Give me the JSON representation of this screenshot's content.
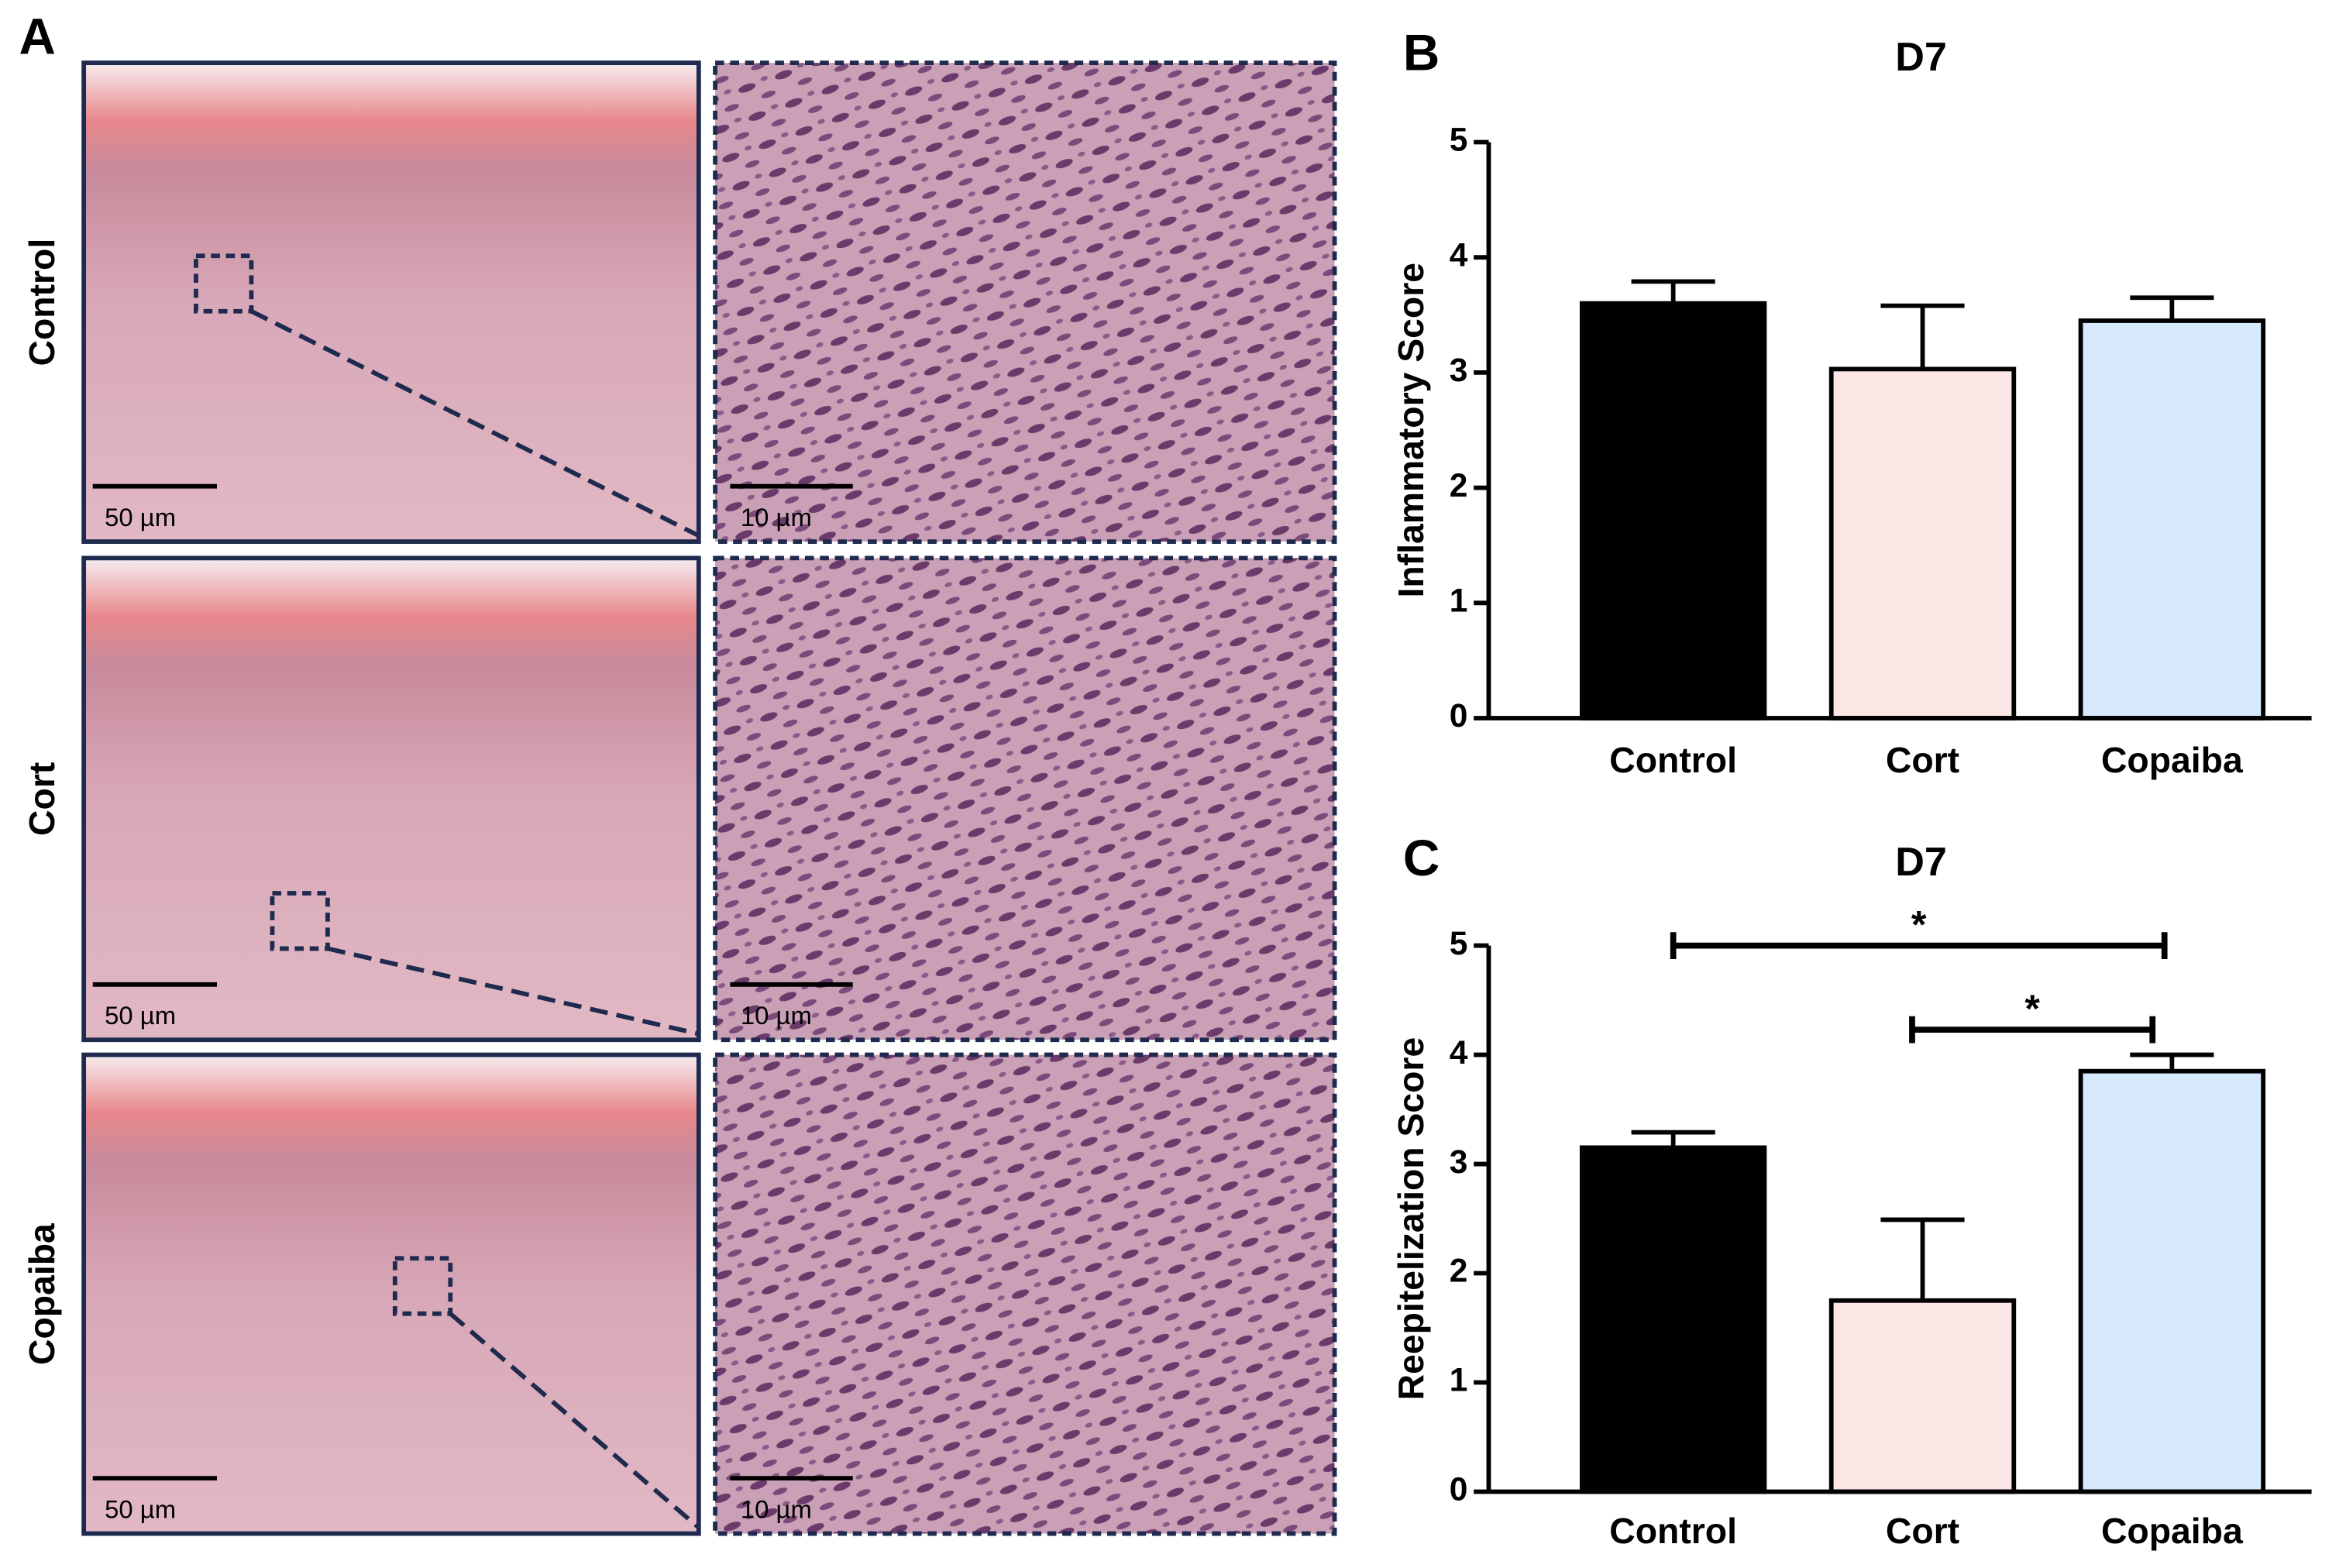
{
  "panel_a": {
    "label": "A",
    "rows": [
      {
        "label": "Control",
        "scale_left": "50 µm",
        "scale_right": "10 µm"
      },
      {
        "label": "Cort",
        "scale_left": "50 µm",
        "scale_right": "10 µm"
      },
      {
        "label": "Copaiba",
        "scale_left": "50 µm",
        "scale_right": "10 µm"
      }
    ]
  },
  "chart_data": [
    {
      "type": "bar",
      "panel_label": "B",
      "title": "D7",
      "ylabel": "Inflammatory Score",
      "categories": [
        "Control",
        "Cort",
        "Copaiba"
      ],
      "values": [
        3.6,
        3.03,
        3.45
      ],
      "errors": [
        0.19,
        0.55,
        0.2
      ],
      "colors": [
        "#000000",
        "#fde6e6",
        "#d6e8fb"
      ],
      "ylim": [
        0,
        5
      ],
      "yticks": [
        0,
        1,
        2,
        3,
        4,
        5
      ]
    },
    {
      "type": "bar",
      "panel_label": "C",
      "title": "D7",
      "ylabel": "Reepitelization Score",
      "categories": [
        "Control",
        "Cort",
        "Copaiba"
      ],
      "values": [
        3.15,
        1.75,
        3.85
      ],
      "errors": [
        0.14,
        0.74,
        0.15
      ],
      "colors": [
        "#000000",
        "#fde6e6",
        "#d6e8fb"
      ],
      "ylim": [
        0,
        5
      ],
      "yticks": [
        0,
        1,
        2,
        3,
        4,
        5
      ],
      "annotations": [
        {
          "text": "*",
          "from": "Control",
          "to": "Copaiba",
          "y": 5.0
        },
        {
          "text": "*",
          "from": "Cort",
          "to": "Copaiba",
          "y": 4.23
        }
      ]
    }
  ]
}
